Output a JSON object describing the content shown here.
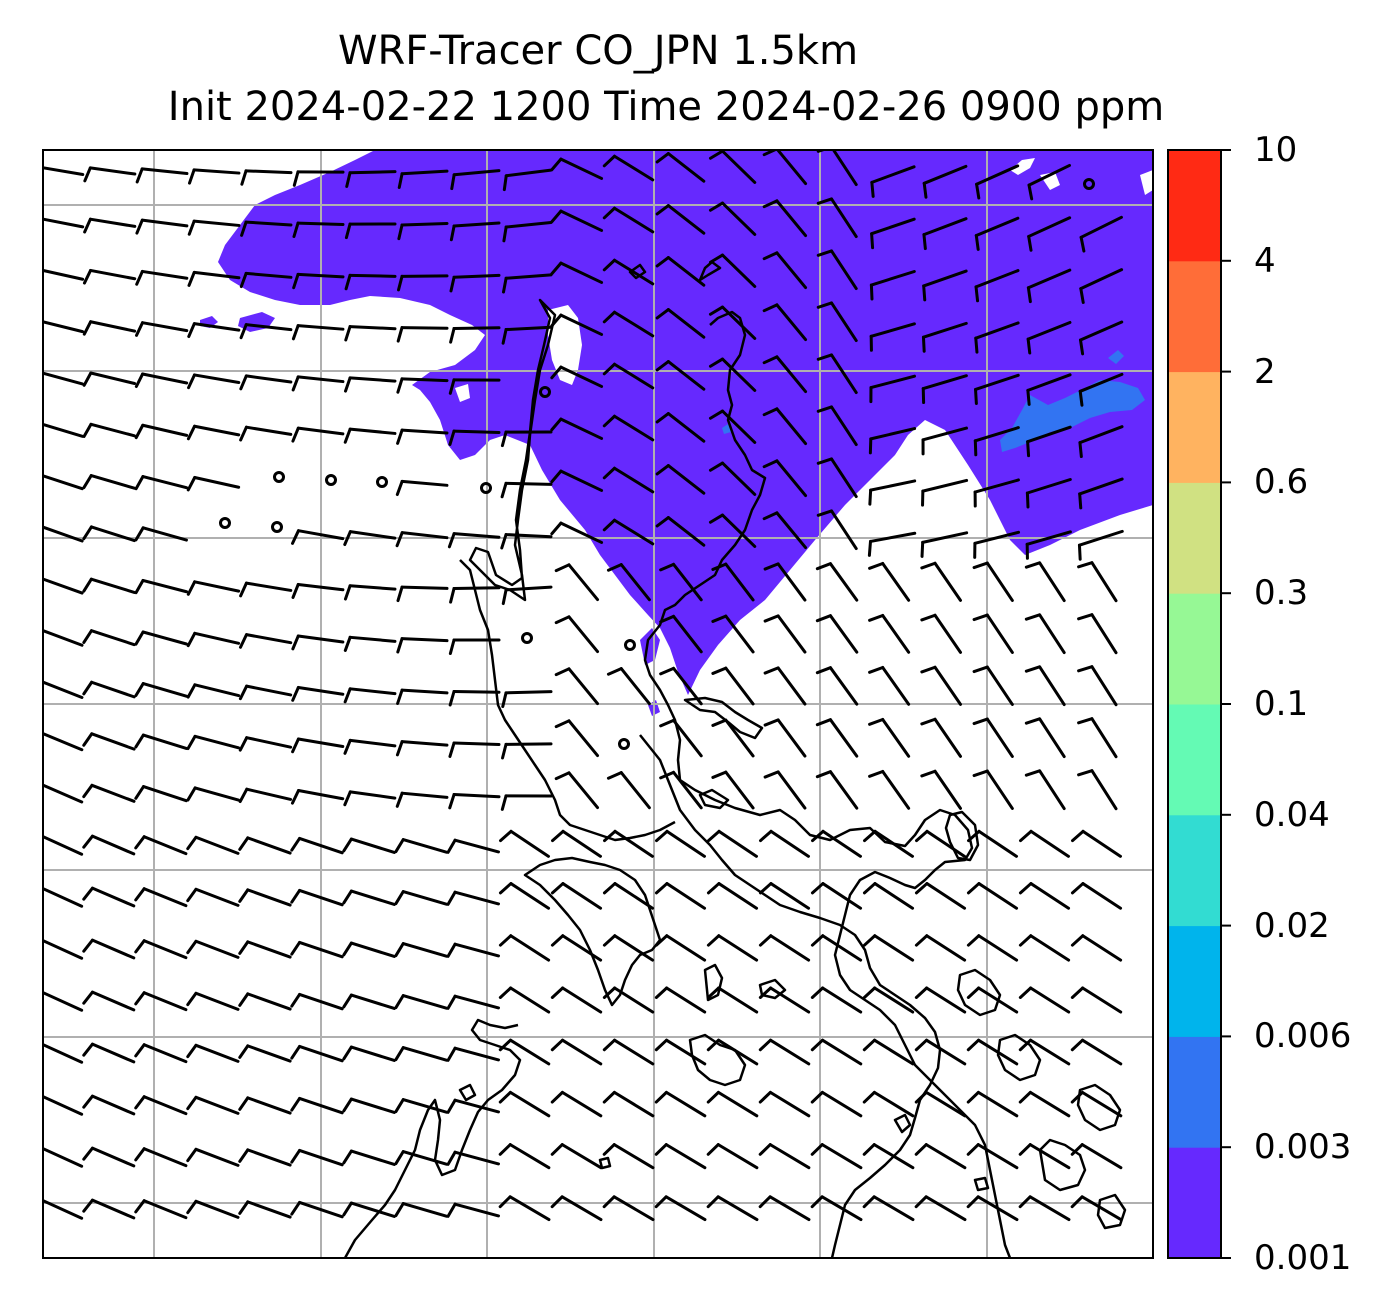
{
  "title": {
    "line1": "WRF-Tracer CO_JPN 1.5km",
    "line2": "Init 2024-02-22 1200 Time 2024-02-26 0900 ppm"
  },
  "colorbar": {
    "levels": [
      "0.001",
      "0.003",
      "0.006",
      "0.02",
      "0.04",
      "0.1",
      "0.3",
      "0.6",
      "2",
      "4",
      "10"
    ],
    "colors": [
      "#6629fe",
      "#3274f2",
      "#00b4ec",
      "#32dcd2",
      "#64fab4",
      "#96f895",
      "#d0e182",
      "#ffb360",
      "#ff6d38",
      "#ff2a14"
    ]
  },
  "map": {
    "plume_color": "#6629fe",
    "patch_color": "#3274f2",
    "gridline_color": "#b0b0b0",
    "coastline_color": "#000000"
  }
}
